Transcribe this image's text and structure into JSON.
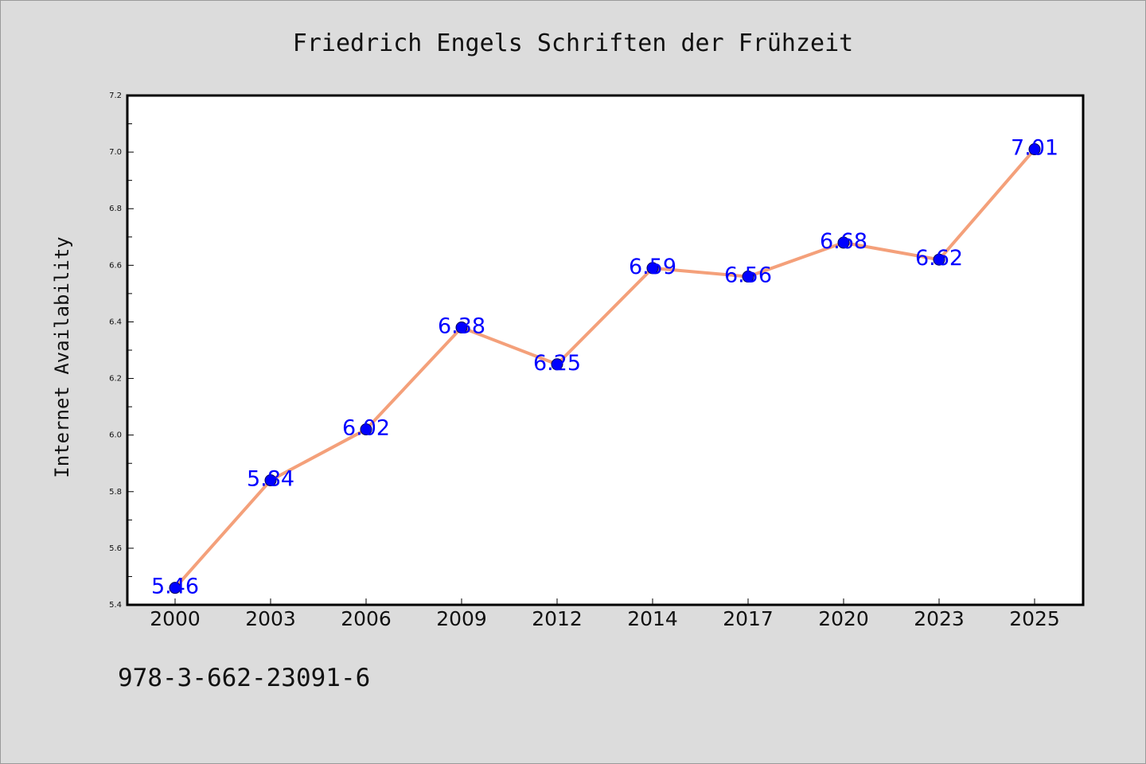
{
  "chart_data": {
    "type": "line",
    "title": "Friedrich Engels Schriften der Frühzeit",
    "xlabel": "",
    "ylabel": "Internet Availability",
    "categories": [
      "2000",
      "2003",
      "2006",
      "2009",
      "2012",
      "2014",
      "2017",
      "2020",
      "2023",
      "2025"
    ],
    "values": [
      5.46,
      5.84,
      6.02,
      6.38,
      6.25,
      6.59,
      6.56,
      6.68,
      6.62,
      7.01
    ],
    "data_labels": [
      "5.46",
      "5.84",
      "6.02",
      "6.38",
      "6.25",
      "6.59",
      "6.56",
      "6.68",
      "6.62",
      "7.01"
    ],
    "ylim": [
      5.4,
      7.2
    ],
    "yticks": [
      5.4,
      5.6,
      5.8,
      6.0,
      6.2,
      6.4,
      6.6,
      6.8,
      7.0,
      7.2
    ],
    "ytick_labels": [
      "5.4",
      "5.6",
      "5.8",
      "6.0",
      "6.2",
      "6.4",
      "6.6",
      "6.8",
      "7.0",
      "7.2"
    ],
    "grid": false,
    "legend": "none",
    "colors": {
      "line": "#f4a07a",
      "marker": "#0000ff",
      "marker_edge": "#00005a",
      "data_label": "#0000ff",
      "background": "#dcdcdc",
      "plot_background": "#ffffff"
    }
  },
  "footer": {
    "code": "978-3-662-23091-6"
  }
}
